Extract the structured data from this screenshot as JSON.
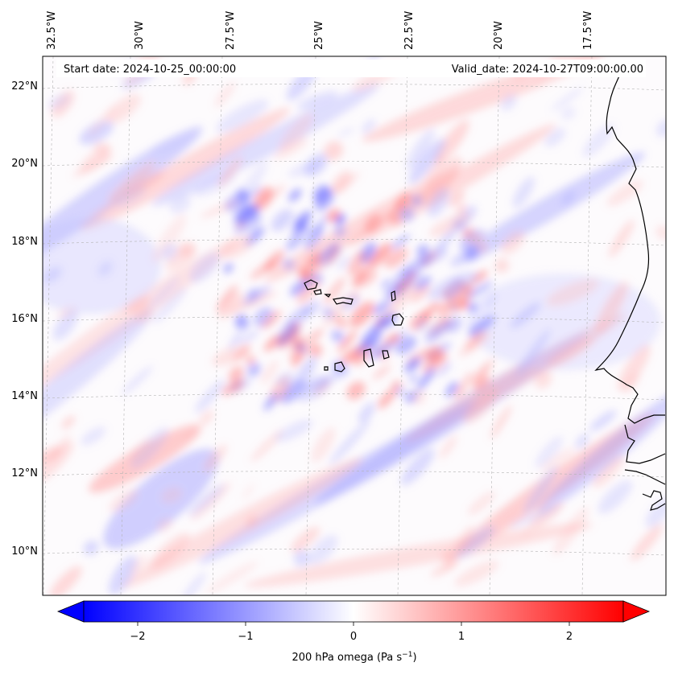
{
  "map": {
    "start_label": "Start date: 2024-10-25_00:00:00",
    "valid_label": "Valid_date: 2024-10-27T09:00:00.00",
    "lon_ticks": [
      "32.5°W",
      "30°W",
      "27.5°W",
      "25°W",
      "22.5°W",
      "20°W",
      "17.5°W"
    ],
    "lat_ticks": [
      "22°N",
      "20°N",
      "18°N",
      "16°N",
      "14°N",
      "12°N",
      "10°N"
    ],
    "colors": {
      "negative": "#0000ff",
      "zero": "#ffffff",
      "positive": "#ff0000",
      "coast": "#000000",
      "grid": "#b4b4b4"
    }
  },
  "colorbar": {
    "ticks": [
      "−2",
      "−1",
      "0",
      "1",
      "2"
    ],
    "tick_values": [
      -2,
      -1,
      0,
      1,
      2
    ],
    "range": [
      -2.5,
      2.5
    ],
    "label_main": "200 hPa omega (Pa s",
    "label_exp": "−1",
    "label_end": ")"
  }
}
